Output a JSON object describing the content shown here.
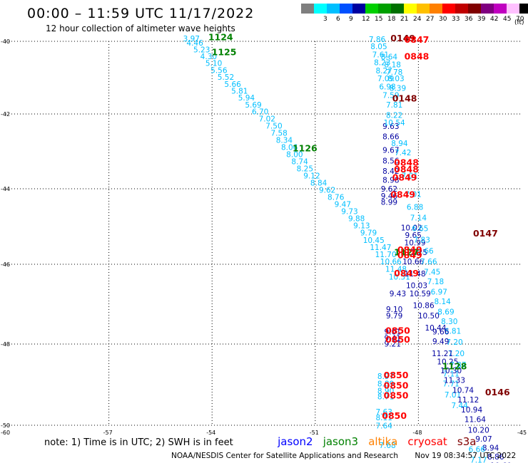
{
  "header": {
    "title": "00:00 – 11:59 UTC 11/17/2022",
    "subtitle": "12 hour collection of altimeter wave heights"
  },
  "colorbar": {
    "unit_label": "(ft)",
    "bins": [
      {
        "label": "",
        "color": "#7f7f7f"
      },
      {
        "label": "3",
        "color": "#00ffff"
      },
      {
        "label": "6",
        "color": "#00bfff"
      },
      {
        "label": "9",
        "color": "#0050ff"
      },
      {
        "label": "12",
        "color": "#0000a0"
      },
      {
        "label": "15",
        "color": "#00d000"
      },
      {
        "label": "18",
        "color": "#00a000"
      },
      {
        "label": "21",
        "color": "#007000"
      },
      {
        "label": "24",
        "color": "#ffff00"
      },
      {
        "label": "27",
        "color": "#ffc000"
      },
      {
        "label": "30",
        "color": "#ff8000"
      },
      {
        "label": "33",
        "color": "#ff0000"
      },
      {
        "label": "36",
        "color": "#c00000"
      },
      {
        "label": "39",
        "color": "#800000"
      },
      {
        "label": "42",
        "color": "#800080"
      },
      {
        "label": "45",
        "color": "#c000c0"
      },
      {
        "label": "70",
        "color": "#ffc0ff"
      },
      {
        "label": "",
        "color": "#000000"
      }
    ]
  },
  "map": {
    "lon_range": [
      -60,
      -45
    ],
    "lat_range": [
      -50,
      -40
    ],
    "lon_ticks": [
      "-57",
      "-54",
      "-51",
      "-48",
      "-45"
    ],
    "lat_ticks": [
      "-40",
      "-42",
      "-44",
      "-46",
      "-48",
      "-50"
    ],
    "corner_label": "-60",
    "colors": {
      "swh": "#00bfff",
      "swh_high": "#0000a0",
      "time_jason3": "#008000",
      "time_cryosat": "#ff0000",
      "time_s3a": "#800000"
    },
    "tracks": [
      {
        "name": "track-west",
        "color": "#00bfff",
        "points": [
          {
            "lon": -54.6,
            "lat": -40.0,
            "v": "3.97"
          },
          {
            "lon": -54.5,
            "lat": -40.12,
            "v": "4.46"
          },
          {
            "lon": -54.3,
            "lat": -40.3,
            "v": "5.23"
          },
          {
            "lon": -54.1,
            "lat": -40.49,
            "v": "4.30"
          },
          {
            "lon": -53.95,
            "lat": -40.68,
            "v": "5.10"
          },
          {
            "lon": -53.8,
            "lat": -40.87,
            "v": "5.56"
          },
          {
            "lon": -53.6,
            "lat": -41.06,
            "v": "5.52"
          },
          {
            "lon": -53.4,
            "lat": -41.25,
            "v": "5.66"
          },
          {
            "lon": -53.2,
            "lat": -41.44,
            "v": "5.81"
          },
          {
            "lon": -53.0,
            "lat": -41.63,
            "v": "5.94"
          },
          {
            "lon": -52.8,
            "lat": -41.82,
            "v": "5.69"
          },
          {
            "lon": -52.6,
            "lat": -42.01,
            "v": "6.70"
          },
          {
            "lon": -52.4,
            "lat": -42.2,
            "v": "7.02"
          },
          {
            "lon": -52.2,
            "lat": -42.39,
            "v": "7.50"
          },
          {
            "lon": -52.05,
            "lat": -42.58,
            "v": "7.58"
          },
          {
            "lon": -51.9,
            "lat": -42.77,
            "v": "8.34"
          },
          {
            "lon": -51.75,
            "lat": -42.96,
            "v": "8.06"
          },
          {
            "lon": -51.6,
            "lat": -43.15,
            "v": "8.00"
          },
          {
            "lon": -51.45,
            "lat": -43.34,
            "v": "8.74"
          },
          {
            "lon": -51.3,
            "lat": -43.53,
            "v": "8.25"
          },
          {
            "lon": -51.1,
            "lat": -43.72,
            "v": "9.12"
          },
          {
            "lon": -50.9,
            "lat": -43.91,
            "v": "8.84"
          },
          {
            "lon": -50.65,
            "lat": -44.1,
            "v": "9.62"
          },
          {
            "lon": -50.4,
            "lat": -44.29,
            "v": "8.76"
          },
          {
            "lon": -50.2,
            "lat": -44.48,
            "v": "9.47"
          },
          {
            "lon": -50.0,
            "lat": -44.67,
            "v": "9.73"
          },
          {
            "lon": -49.8,
            "lat": -44.86,
            "v": "9.88"
          },
          {
            "lon": -49.65,
            "lat": -45.05,
            "v": "9.13"
          },
          {
            "lon": -49.45,
            "lat": -45.24,
            "v": "9.79"
          },
          {
            "lon": -49.3,
            "lat": -45.43,
            "v": "10.45"
          },
          {
            "lon": -49.1,
            "lat": -45.62,
            "v": "11.47"
          },
          {
            "lon": -48.95,
            "lat": -45.81,
            "v": "11.70"
          },
          {
            "lon": -48.8,
            "lat": -46.0,
            "v": "10.66"
          },
          {
            "lon": -48.65,
            "lat": -46.19,
            "v": "11.48"
          },
          {
            "lon": -48.55,
            "lat": -46.38,
            "v": "10.51"
          }
        ]
      },
      {
        "name": "track-middle",
        "color": "#0000a0",
        "points": [
          {
            "lon": -48.2,
            "lat": -45.1,
            "v": "10.02"
          },
          {
            "lon": -48.15,
            "lat": -45.3,
            "v": "9.65"
          },
          {
            "lon": -48.1,
            "lat": -45.5,
            "v": "10.99"
          },
          {
            "lon": -48.05,
            "lat": -45.75,
            "v": "11.25"
          },
          {
            "lon": -48.15,
            "lat": -46.0,
            "v": "10.66"
          },
          {
            "lon": -48.1,
            "lat": -46.3,
            "v": "11.48"
          },
          {
            "lon": -48.05,
            "lat": -46.6,
            "v": "10.03"
          },
          {
            "lon": -47.95,
            "lat": -46.8,
            "v": "10.59"
          },
          {
            "lon": -48.6,
            "lat": -46.8,
            "v": "9.43"
          },
          {
            "lon": -47.85,
            "lat": -47.1,
            "v": "10.86"
          },
          {
            "lon": -48.7,
            "lat": -47.2,
            "v": "9.10"
          },
          {
            "lon": -48.7,
            "lat": -47.36,
            "v": "9.79"
          },
          {
            "lon": -47.7,
            "lat": -47.36,
            "v": "10.50"
          },
          {
            "lon": -47.5,
            "lat": -47.66,
            "v": "10.44"
          },
          {
            "lon": -48.75,
            "lat": -47.76,
            "v": "9.01"
          },
          {
            "lon": -48.75,
            "lat": -47.92,
            "v": "9.41"
          },
          {
            "lon": -48.75,
            "lat": -48.06,
            "v": "9.21"
          }
        ]
      },
      {
        "name": "track-north-inner",
        "color": "#0000a0",
        "points": [
          {
            "lon": -48.8,
            "lat": -42.4,
            "v": "9.63"
          },
          {
            "lon": -48.8,
            "lat": -42.68,
            "v": "8.66"
          },
          {
            "lon": -48.8,
            "lat": -43.04,
            "v": "9.67"
          },
          {
            "lon": -48.8,
            "lat": -43.32,
            "v": "8.56"
          },
          {
            "lon": -48.8,
            "lat": -43.6,
            "v": "8.42"
          },
          {
            "lon": -48.8,
            "lat": -43.84,
            "v": "8.98"
          },
          {
            "lon": -48.85,
            "lat": -44.08,
            "v": "9.62"
          },
          {
            "lon": -48.85,
            "lat": -44.26,
            "v": "9.46"
          },
          {
            "lon": -48.85,
            "lat": -44.42,
            "v": "8.99"
          }
        ]
      },
      {
        "name": "track-north-outer",
        "color": "#00bfff",
        "points": [
          {
            "lon": -49.2,
            "lat": -40.02,
            "v": "7.86"
          },
          {
            "lon": -49.15,
            "lat": -40.22,
            "v": "8.05"
          },
          {
            "lon": -49.1,
            "lat": -40.44,
            "v": "7.61"
          },
          {
            "lon": -48.85,
            "lat": -40.5,
            "v": "8.64"
          },
          {
            "lon": -49.05,
            "lat": -40.66,
            "v": "8.23"
          },
          {
            "lon": -48.75,
            "lat": -40.72,
            "v": "8.18"
          },
          {
            "lon": -49.0,
            "lat": -40.88,
            "v": "8.27"
          },
          {
            "lon": -48.7,
            "lat": -40.92,
            "v": "7.78"
          },
          {
            "lon": -48.95,
            "lat": -41.1,
            "v": "7.09"
          },
          {
            "lon": -48.65,
            "lat": -41.1,
            "v": "8.03"
          },
          {
            "lon": -48.9,
            "lat": -41.32,
            "v": "6.98"
          },
          {
            "lon": -48.6,
            "lat": -41.36,
            "v": "8.39"
          },
          {
            "lon": -48.8,
            "lat": -41.56,
            "v": "7.59"
          },
          {
            "lon": -48.7,
            "lat": -41.82,
            "v": "7.81"
          },
          {
            "lon": -48.7,
            "lat": -42.1,
            "v": "8.22"
          },
          {
            "lon": -48.7,
            "lat": -42.3,
            "v": "10.54"
          },
          {
            "lon": -48.55,
            "lat": -42.86,
            "v": "8.94"
          },
          {
            "lon": -48.45,
            "lat": -43.1,
            "v": "7.42"
          },
          {
            "lon": -48.25,
            "lat": -43.72,
            "v": "7.01"
          },
          {
            "lon": -48.15,
            "lat": -44.22,
            "v": "7.01"
          },
          {
            "lon": -48.1,
            "lat": -44.56,
            "v": "6.88"
          },
          {
            "lon": -48.0,
            "lat": -44.84,
            "v": "7.14"
          },
          {
            "lon": -47.95,
            "lat": -45.12,
            "v": "6.65"
          },
          {
            "lon": -47.9,
            "lat": -45.42,
            "v": "7.83"
          },
          {
            "lon": -47.8,
            "lat": -45.72,
            "v": "6.66"
          },
          {
            "lon": -47.7,
            "lat": -46.0,
            "v": "7.66"
          },
          {
            "lon": -47.6,
            "lat": -46.26,
            "v": "7.45"
          },
          {
            "lon": -47.5,
            "lat": -46.5,
            "v": "7.18"
          },
          {
            "lon": -47.4,
            "lat": -46.76,
            "v": "6.97"
          },
          {
            "lon": -47.3,
            "lat": -47.0,
            "v": "8.14"
          },
          {
            "lon": -47.2,
            "lat": -47.26,
            "v": "8.69"
          },
          {
            "lon": -47.1,
            "lat": -47.5,
            "v": "8.30"
          },
          {
            "lon": -47.0,
            "lat": -47.74,
            "v": "6.81"
          },
          {
            "lon": -46.95,
            "lat": -48.02,
            "v": "7.20"
          },
          {
            "lon": -46.9,
            "lat": -48.3,
            "v": "7.20"
          },
          {
            "lon": -46.85,
            "lat": -48.58,
            "v": "7.87"
          },
          {
            "lon": -47.05,
            "lat": -48.8,
            "v": "7.11"
          },
          {
            "lon": -47.05,
            "lat": -49.04,
            "v": "7.71"
          },
          {
            "lon": -47.0,
            "lat": -49.32,
            "v": "7.01"
          },
          {
            "lon": -46.8,
            "lat": -49.58,
            "v": "7.44"
          }
        ]
      },
      {
        "name": "track-south-east",
        "color": "#0000a0",
        "points": [
          {
            "lon": -47.35,
            "lat": -47.76,
            "v": "9.66"
          },
          {
            "lon": -47.35,
            "lat": -48.0,
            "v": "9.49"
          },
          {
            "lon": -47.3,
            "lat": -48.3,
            "v": "11.21"
          },
          {
            "lon": -47.15,
            "lat": -48.5,
            "v": "10.25"
          },
          {
            "lon": -47.05,
            "lat": -48.72,
            "v": "10.30"
          },
          {
            "lon": -46.95,
            "lat": -48.96,
            "v": "11.33"
          },
          {
            "lon": -46.7,
            "lat": -49.2,
            "v": "10.74"
          },
          {
            "lon": -46.55,
            "lat": -49.44,
            "v": "11.12"
          },
          {
            "lon": -46.45,
            "lat": -49.68,
            "v": "10.94"
          },
          {
            "lon": -46.35,
            "lat": -49.92,
            "v": "11.64"
          },
          {
            "lon": -46.25,
            "lat": -50.18,
            "v": "10.20"
          },
          {
            "lon": -46.1,
            "lat": -50.4,
            "v": "9.07"
          },
          {
            "lon": -45.9,
            "lat": -50.62,
            "v": "8.94"
          },
          {
            "lon": -45.75,
            "lat": -50.84,
            "v": "8.86"
          },
          {
            "lon": -45.6,
            "lat": -51.06,
            "v": "10.60"
          },
          {
            "lon": -45.4,
            "lat": -51.28,
            "v": "9.28"
          }
        ]
      },
      {
        "name": "track-south-west",
        "color": "#00bfff",
        "points": [
          {
            "lon": -48.95,
            "lat": -48.86,
            "v": "8.97"
          },
          {
            "lon": -48.95,
            "lat": -49.04,
            "v": "8.89"
          },
          {
            "lon": -48.95,
            "lat": -49.22,
            "v": "8.90"
          },
          {
            "lon": -48.95,
            "lat": -49.36,
            "v": "8.71"
          },
          {
            "lon": -49.0,
            "lat": -49.74,
            "v": "7.63"
          },
          {
            "lon": -49.0,
            "lat": -49.88,
            "v": "8.11"
          },
          {
            "lon": -49.0,
            "lat": -50.08,
            "v": "7.64"
          },
          {
            "lon": -48.9,
            "lat": -50.56,
            "v": "7.68"
          },
          {
            "lon": -46.3,
            "lat": -50.66,
            "v": "6.66"
          },
          {
            "lon": -46.25,
            "lat": -50.92,
            "v": "7.17"
          }
        ]
      }
    ],
    "time_labels": [
      {
        "lon": -53.75,
        "lat": -39.97,
        "text": "1124",
        "sat": "jason3"
      },
      {
        "lon": -53.65,
        "lat": -40.38,
        "text": "1125",
        "sat": "jason3"
      },
      {
        "lon": -51.3,
        "lat": -43.0,
        "text": "1126",
        "sat": "jason3"
      },
      {
        "lon": -48.35,
        "lat": -45.76,
        "text": "1127",
        "sat": "jason3"
      },
      {
        "lon": -46.95,
        "lat": -48.62,
        "text": "1128",
        "sat": "jason3"
      },
      {
        "lon": -48.45,
        "lat": -40.0,
        "text": "0149",
        "sat": "s3a"
      },
      {
        "lon": -48.4,
        "lat": -41.66,
        "text": "0148",
        "sat": "s3a"
      },
      {
        "lon": -46.05,
        "lat": -45.26,
        "text": "0147",
        "sat": "s3a"
      },
      {
        "lon": -45.7,
        "lat": -49.26,
        "text": "0146",
        "sat": "s3a"
      },
      {
        "lon": -48.05,
        "lat": -40.04,
        "text": "0847",
        "sat": "cryosat"
      },
      {
        "lon": -48.05,
        "lat": -40.5,
        "text": "0848",
        "sat": "cryosat"
      },
      {
        "lon": -48.35,
        "lat": -43.38,
        "text": "0848",
        "sat": "cryosat"
      },
      {
        "lon": -48.35,
        "lat": -43.56,
        "text": "0848",
        "sat": "cryosat"
      },
      {
        "lon": -48.4,
        "lat": -43.78,
        "text": "0849",
        "sat": "cryosat"
      },
      {
        "lon": -48.45,
        "lat": -44.24,
        "text": "0849",
        "sat": "cryosat"
      },
      {
        "lon": -48.25,
        "lat": -45.7,
        "text": "0849",
        "sat": "cryosat"
      },
      {
        "lon": -48.25,
        "lat": -45.84,
        "text": "0849",
        "sat": "cryosat"
      },
      {
        "lon": -48.35,
        "lat": -46.3,
        "text": "0849",
        "sat": "cryosat"
      },
      {
        "lon": -48.6,
        "lat": -47.74,
        "text": "0850",
        "sat": "cryosat"
      },
      {
        "lon": -48.6,
        "lat": -47.96,
        "text": "0850",
        "sat": "cryosat"
      },
      {
        "lon": -48.65,
        "lat": -48.84,
        "text": "0850",
        "sat": "cryosat"
      },
      {
        "lon": -48.65,
        "lat": -49.1,
        "text": "0850",
        "sat": "cryosat"
      },
      {
        "lon": -48.65,
        "lat": -49.34,
        "text": "0850",
        "sat": "cryosat"
      },
      {
        "lon": -48.7,
        "lat": -49.84,
        "text": "0850",
        "sat": "cryosat"
      }
    ]
  },
  "footer": {
    "note": "note: 1) Time is in UTC; 2) SWH is in feet",
    "legend": [
      {
        "name": "jason2",
        "color": "#0000ff"
      },
      {
        "name": "jason3",
        "color": "#008000"
      },
      {
        "name": "altika",
        "color": "#ff8000"
      },
      {
        "name": "cryosat",
        "color": "#ff0000"
      },
      {
        "name": "s3a",
        "color": "#800000"
      }
    ],
    "credit": "NOAA/NESDIS Center for Satellite Applications and Research",
    "timestamp": "Nov 19 08:34:57 UTC 2022"
  }
}
